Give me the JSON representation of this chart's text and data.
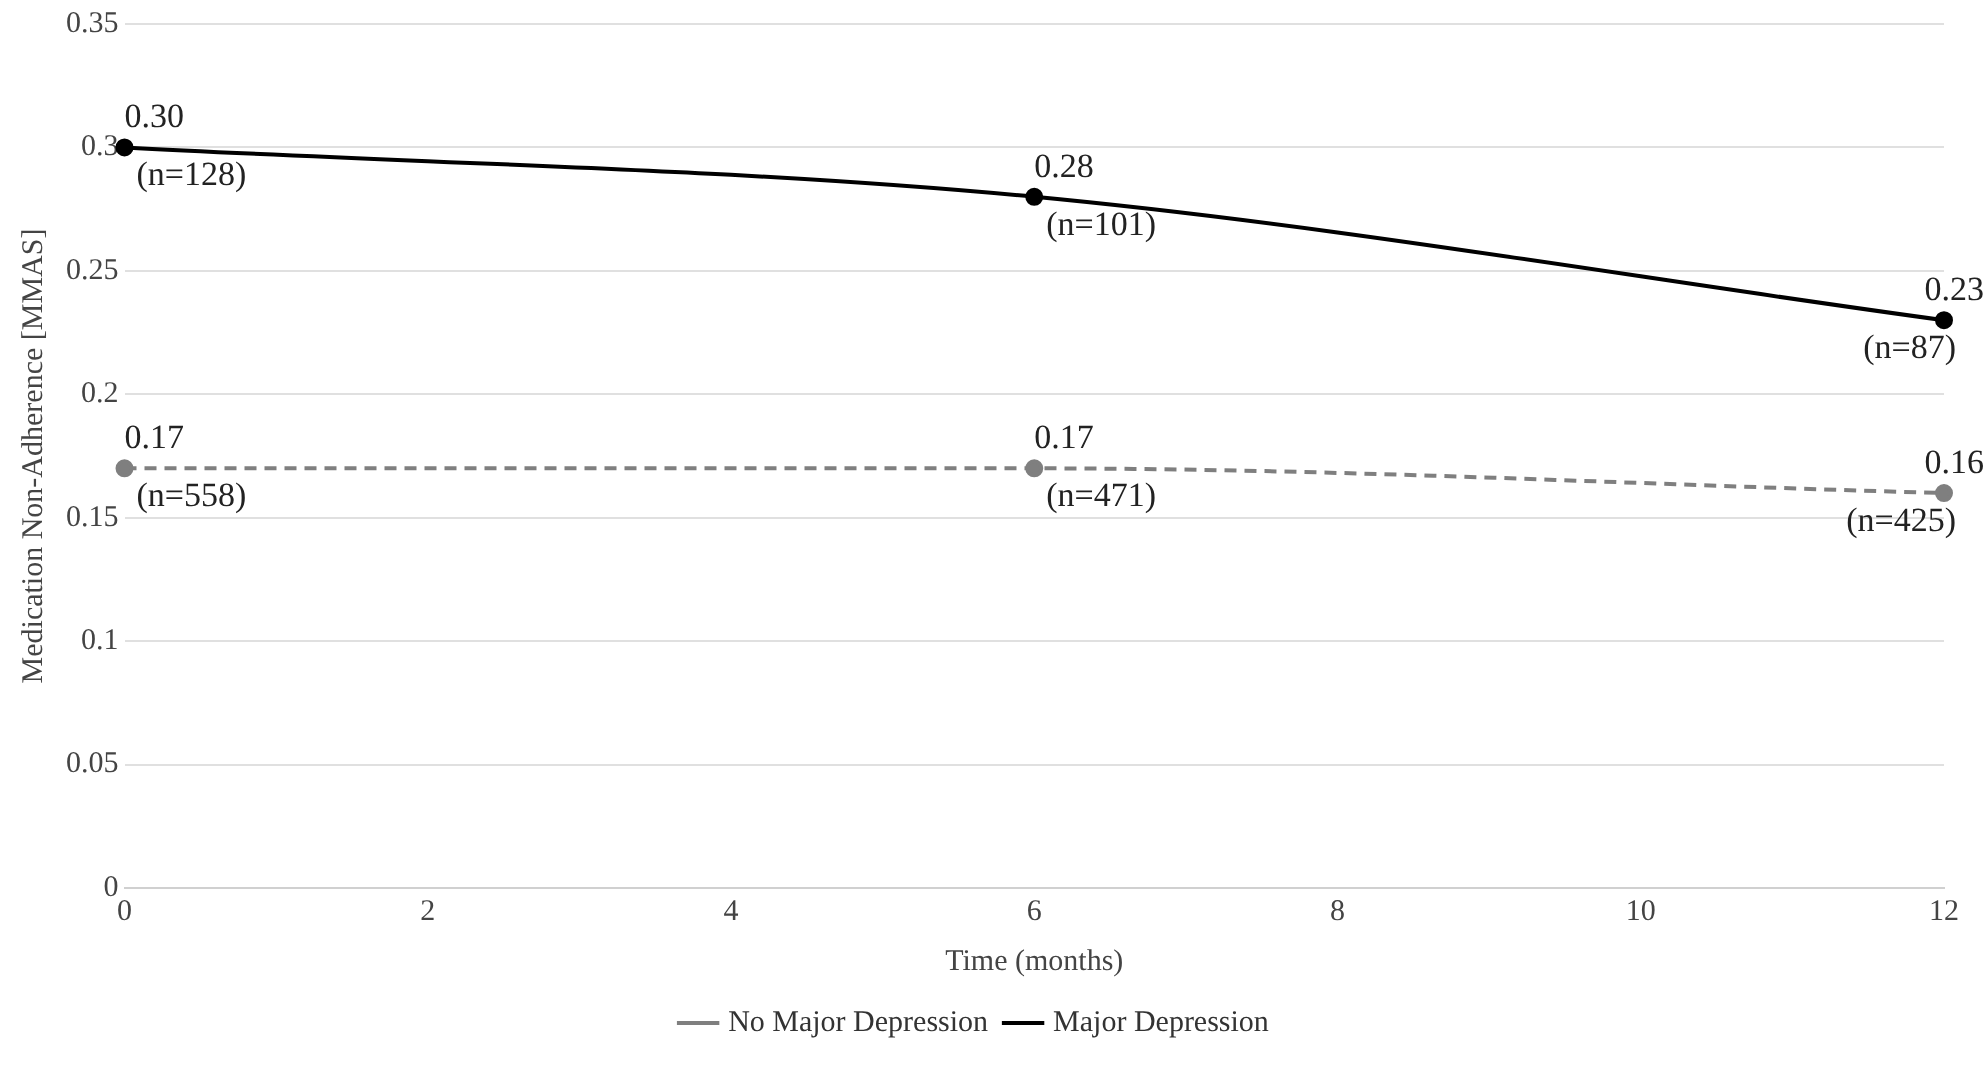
{
  "chart_data": {
    "type": "line",
    "xlabel": "Time (months)",
    "ylabel": "Medication Non-Adherence [MMAS]",
    "x": [
      0,
      6,
      12
    ],
    "series": [
      {
        "name": "No Major Depression",
        "color": "#7f7f7f",
        "line_style": "dashed",
        "values": [
          0.17,
          0.17,
          0.16
        ],
        "value_labels": [
          "0.17",
          "0.17",
          "0.16"
        ]
      },
      {
        "name": "Major Depression",
        "color": "#000000",
        "line_style": "solid",
        "values": [
          0.3,
          0.28,
          0.23
        ],
        "value_labels": [
          "0.30",
          "0.28",
          "0.23"
        ]
      }
    ],
    "annotations": [
      {
        "text": "(n=128)",
        "x": 0,
        "y": 0.3
      },
      {
        "text": "(n=101)",
        "x": 6,
        "y": 0.28
      },
      {
        "text": "(n=87)",
        "x": 12,
        "y": 0.23
      },
      {
        "text": "(n=558)",
        "x": 0,
        "y": 0.17
      },
      {
        "text": "(n=471)",
        "x": 6,
        "y": 0.17
      },
      {
        "text": "(n=425)",
        "x": 12,
        "y": 0.16
      }
    ],
    "xlim": [
      0,
      12
    ],
    "xticks": [
      0,
      2,
      4,
      6,
      8,
      10,
      12
    ],
    "ylim": [
      0,
      0.35
    ],
    "yticks": [
      0,
      0.05,
      0.1,
      0.15,
      0.2,
      0.25,
      0.3,
      0.35
    ],
    "grid": "y",
    "legend": "bottom",
    "marker": "circle"
  }
}
